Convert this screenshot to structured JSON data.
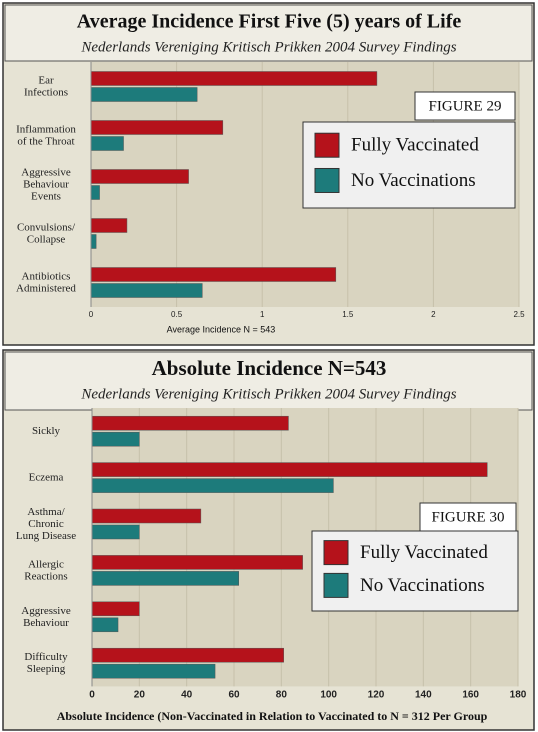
{
  "chart_data": [
    {
      "type": "bar",
      "orientation": "horizontal",
      "title": "Average Incidence First Five (5) years of Life",
      "subtitle": "Nederlands Vereniging Kritisch Prikken 2004 Survey Findings",
      "figure_label": "FIGURE 29",
      "x_label": "Average Incidence N = 543",
      "categories": [
        [
          "Ear",
          "Infections"
        ],
        [
          "Inflammation",
          "of the Throat"
        ],
        [
          "Aggressive",
          "Behaviour",
          "Events"
        ],
        [
          "Convulsions/",
          "Collapse"
        ],
        [
          "Antibiotics",
          "Administered"
        ]
      ],
      "series": [
        {
          "name": "Fully Vaccinated",
          "color": "#b5121b",
          "values": [
            1.67,
            0.77,
            0.57,
            0.21,
            1.43
          ]
        },
        {
          "name": "No Vaccinations",
          "color": "#1d7b7b",
          "values": [
            0.62,
            0.19,
            0.05,
            0.03,
            0.65
          ]
        }
      ],
      "xlim": [
        0,
        2.5
      ],
      "xticks": [
        0,
        0.5,
        1,
        1.5,
        2,
        2.5
      ],
      "grid": true
    },
    {
      "type": "bar",
      "orientation": "horizontal",
      "title": "Absolute Incidence N=543",
      "subtitle": "Nederlands Vereniging Kritisch Prikken 2004 Survey Findings",
      "figure_label": "FIGURE 30",
      "x_label": "Absolute Incidence (Non-Vaccinated in Relation to Vaccinated to N = 312 Per Group",
      "categories": [
        [
          "Sickly"
        ],
        [
          "Eczema"
        ],
        [
          "Asthma/",
          "Chronic",
          "Lung Disease"
        ],
        [
          "Allergic",
          "Reactions"
        ],
        [
          "Aggressive",
          "Behaviour"
        ],
        [
          "Difficulty",
          "Sleeping"
        ]
      ],
      "series": [
        {
          "name": "Fully Vaccinated",
          "color": "#b5121b",
          "values": [
            83,
            167,
            46,
            89,
            20,
            81
          ]
        },
        {
          "name": "No Vaccinations",
          "color": "#1d7b7b",
          "values": [
            20,
            102,
            20,
            62,
            11,
            52
          ]
        }
      ],
      "xlim": [
        0,
        180
      ],
      "xticks": [
        0,
        20,
        40,
        60,
        80,
        100,
        120,
        140,
        160,
        180
      ],
      "grid": true
    }
  ]
}
